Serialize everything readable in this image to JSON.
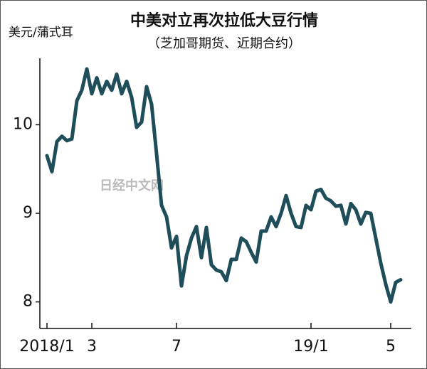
{
  "chart_data": {
    "type": "line",
    "title": "中美对立再次拉低大豆行情",
    "subtitle": "（芝加哥期货、近期合约）",
    "y_label": "美元/蒲式耳",
    "watermark": "日经中文网",
    "categories": [
      "2018/1",
      null,
      null,
      null,
      null,
      null,
      null,
      null,
      null,
      "3",
      null,
      null,
      null,
      null,
      null,
      null,
      null,
      null,
      null,
      null,
      null,
      null,
      null,
      null,
      null,
      null,
      "7",
      null,
      null,
      null,
      null,
      null,
      null,
      null,
      null,
      null,
      null,
      null,
      null,
      null,
      null,
      null,
      null,
      null,
      null,
      null,
      null,
      null,
      null,
      null,
      null,
      null,
      null,
      "19/1",
      null,
      null,
      null,
      null,
      null,
      null,
      null,
      null,
      null,
      null,
      null,
      null,
      null,
      null,
      null,
      "5",
      null,
      null
    ],
    "series": [
      {
        "color": "#1f4d5a",
        "values": [
          9.65,
          9.47,
          9.81,
          9.87,
          9.82,
          9.84,
          10.27,
          10.39,
          10.63,
          10.35,
          10.53,
          10.35,
          10.49,
          10.39,
          10.57,
          10.35,
          10.49,
          10.31,
          9.97,
          10.03,
          10.43,
          10.23,
          9.67,
          9.09,
          8.96,
          8.61,
          8.74,
          8.18,
          8.52,
          8.72,
          8.85,
          8.5,
          8.84,
          8.42,
          8.36,
          8.34,
          8.24,
          8.48,
          8.48,
          8.72,
          8.68,
          8.56,
          8.45,
          8.8,
          8.8,
          8.96,
          8.85,
          9.0,
          9.2,
          9.0,
          8.85,
          8.84,
          9.09,
          9.04,
          9.25,
          9.27,
          9.17,
          9.14,
          9.08,
          9.09,
          8.88,
          9.11,
          9.04,
          8.88,
          9.01,
          9.0,
          8.72,
          8.44,
          8.2,
          8.0,
          8.22,
          8.25
        ]
      }
    ],
    "ylim": [
      7.7,
      10.75
    ],
    "yticks": [
      8,
      9,
      10
    ],
    "grid": false
  }
}
